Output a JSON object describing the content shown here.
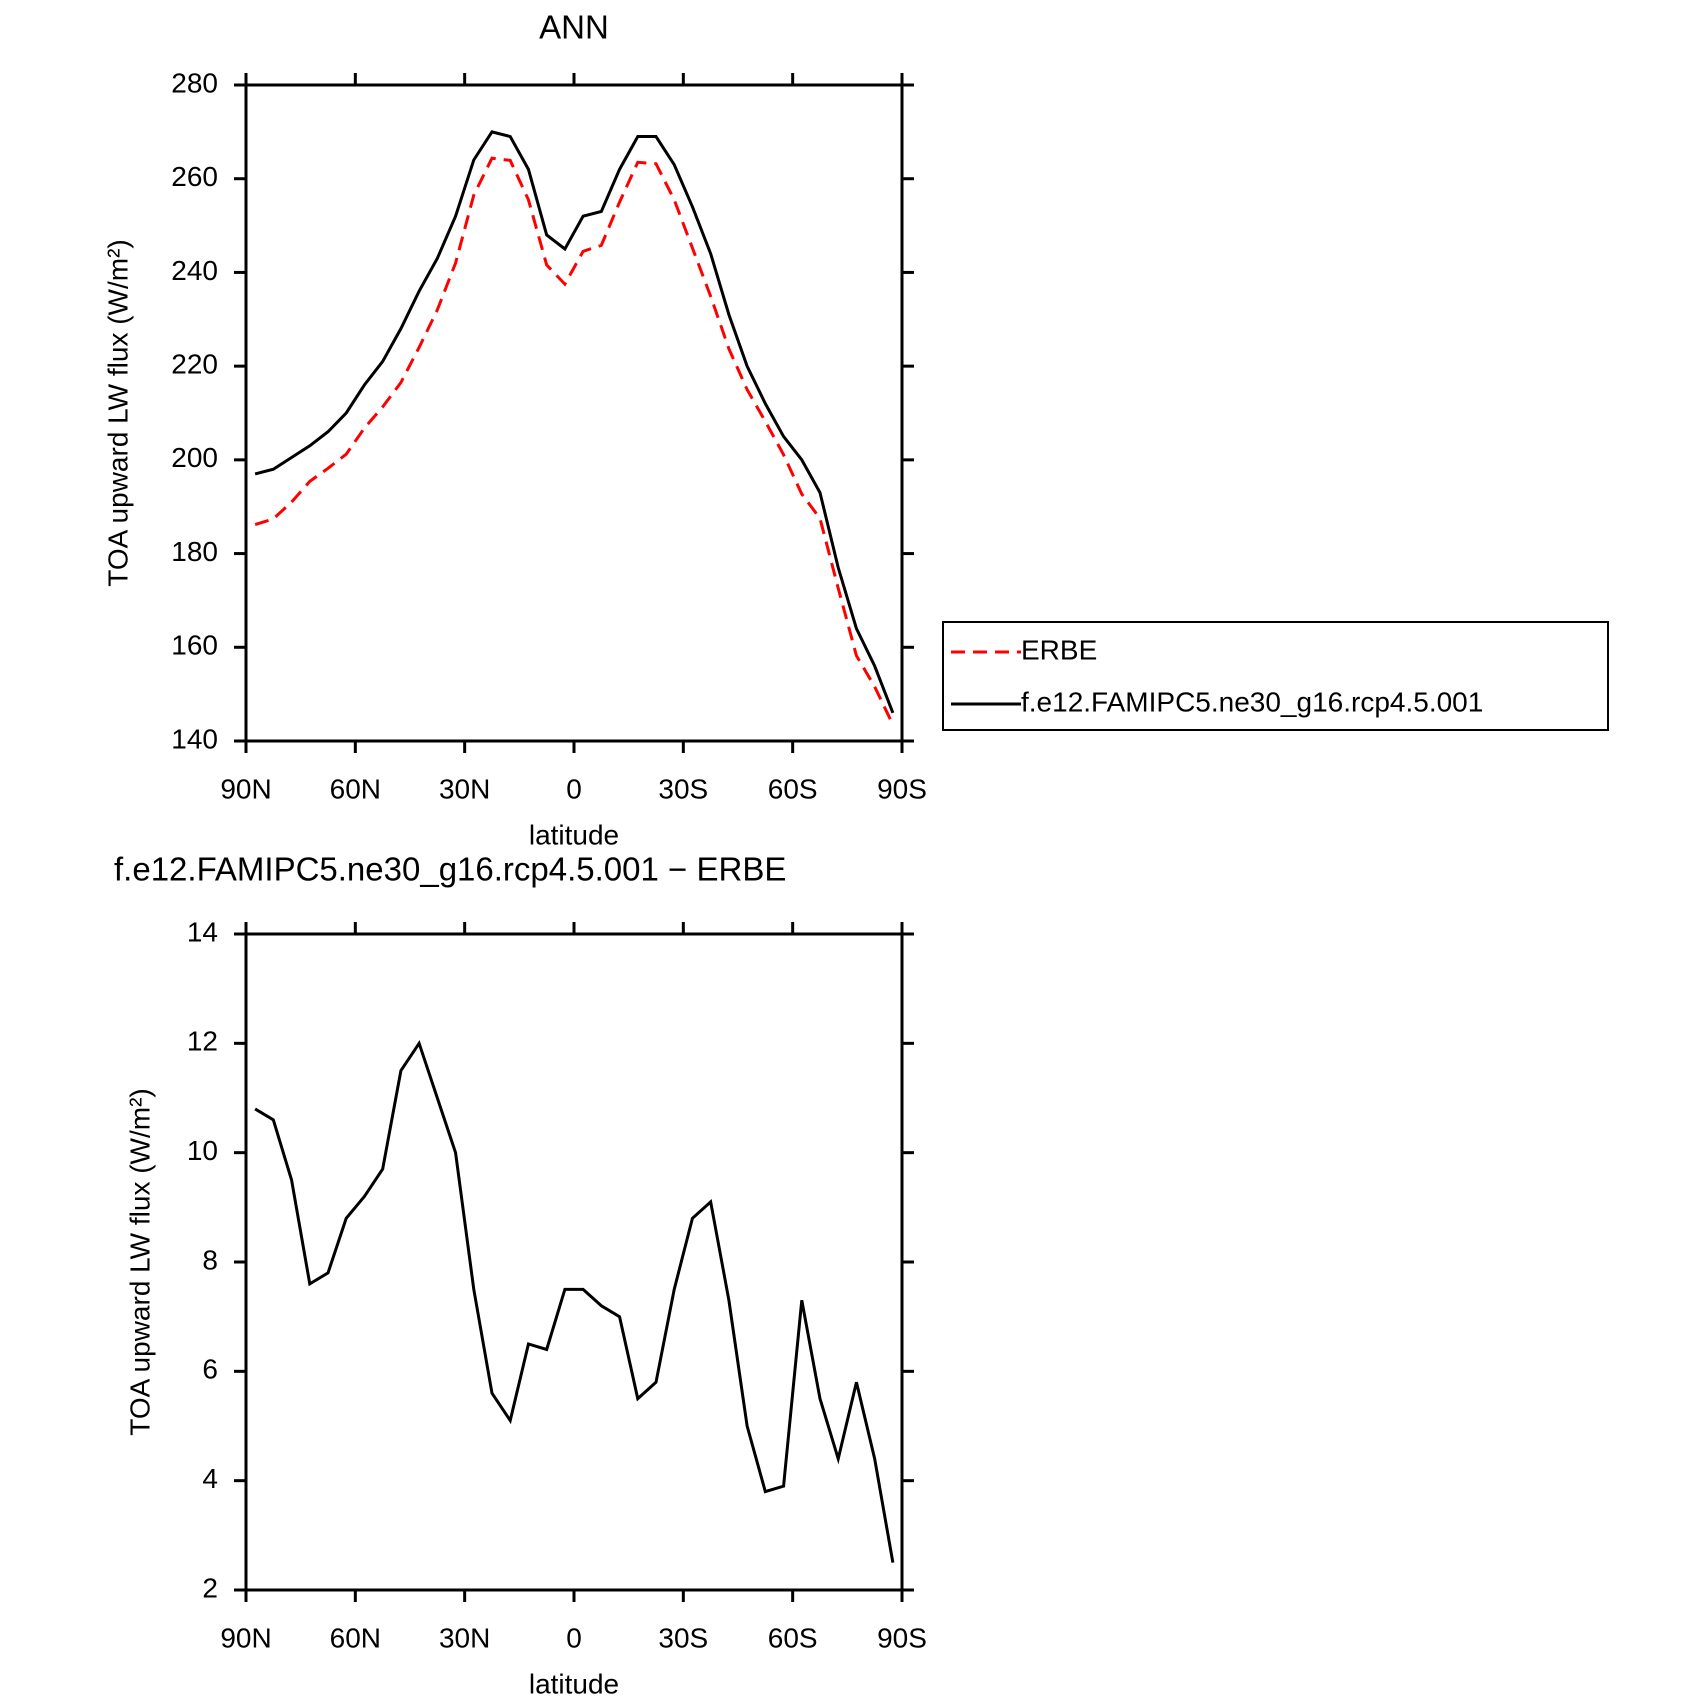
{
  "chart_data": [
    {
      "type": "line",
      "title": "ANN",
      "x_label": "latitude",
      "y_label": "TOA upward LW flux (W/m²)",
      "x": [
        87.5,
        82.5,
        77.5,
        72.5,
        67.5,
        62.5,
        57.5,
        52.5,
        47.5,
        42.5,
        37.5,
        32.5,
        27.5,
        22.5,
        17.5,
        12.5,
        7.5,
        2.5,
        -2.5,
        -7.5,
        -12.5,
        -17.5,
        -22.5,
        -27.5,
        -32.5,
        -37.5,
        -42.5,
        -47.5,
        -52.5,
        -57.5,
        -62.5,
        -67.5,
        -72.5,
        -77.5,
        -82.5,
        -87.5
      ],
      "series": [
        {
          "name": "ERBE",
          "color": "#ff0000",
          "style": "dashed",
          "values": [
            186.2,
            187.4,
            191,
            195.4,
            198.2,
            201.2,
            206.8,
            211.3,
            216.5,
            224,
            232,
            242,
            256.5,
            264.4,
            263.9,
            255.5,
            241.6,
            237.5,
            244.5,
            245.8,
            255,
            263.5,
            263.2,
            255.5,
            245.2,
            234.9,
            223.7,
            215,
            208.2,
            201.1,
            192.7,
            187.5,
            172.6,
            158.2,
            151.6,
            143.5
          ]
        },
        {
          "name": "f.e12.FAMIPC5.ne30_g16.rcp4.5.001",
          "color": "#000000",
          "style": "solid",
          "values": [
            197,
            198,
            200.5,
            203,
            206,
            210,
            216,
            221,
            228,
            236,
            243,
            252,
            264,
            270,
            269,
            262,
            248,
            245,
            252,
            253,
            262,
            269,
            269,
            263,
            254,
            244,
            231,
            220,
            212,
            205,
            200,
            193,
            177,
            164,
            156,
            146
          ]
        }
      ],
      "xlim": [
        90,
        -90
      ],
      "xticks": [
        {
          "value": 90,
          "label": "90N"
        },
        {
          "value": 60,
          "label": "60N"
        },
        {
          "value": 30,
          "label": "30N"
        },
        0,
        {
          "value": -30,
          "label": "30S"
        },
        {
          "value": -60,
          "label": "60S"
        },
        {
          "value": -90,
          "label": "90S"
        }
      ],
      "ylim": [
        140,
        280
      ],
      "yticks": [
        140,
        160,
        180,
        200,
        220,
        240,
        260,
        280
      ],
      "grid": false,
      "legend": "outside-right"
    },
    {
      "type": "line",
      "title": "f.e12.FAMIPC5.ne30_g16.rcp4.5.001 − ERBE",
      "x_label": "latitude",
      "y_label": "TOA upward LW flux (W/m²)",
      "x": [
        87.5,
        82.5,
        77.5,
        72.5,
        67.5,
        62.5,
        57.5,
        52.5,
        47.5,
        42.5,
        37.5,
        32.5,
        27.5,
        22.5,
        17.5,
        12.5,
        7.5,
        2.5,
        -2.5,
        -7.5,
        -12.5,
        -17.5,
        -22.5,
        -27.5,
        -32.5,
        -37.5,
        -42.5,
        -47.5,
        -52.5,
        -57.5,
        -62.5,
        -67.5,
        -72.5,
        -77.5,
        -82.5,
        -87.5
      ],
      "series": [
        {
          "color": "#000000",
          "style": "solid",
          "values": [
            10.8,
            10.6,
            9.5,
            7.6,
            7.8,
            8.8,
            9.2,
            9.7,
            11.5,
            12,
            11,
            10,
            7.5,
            5.6,
            5.1,
            6.5,
            6.4,
            7.5,
            7.5,
            7.2,
            7,
            5.5,
            5.8,
            7.5,
            8.8,
            9.1,
            7.3,
            5,
            3.8,
            3.9,
            7.3,
            5.5,
            4.4,
            5.8,
            4.4,
            2.5
          ]
        }
      ],
      "xlim": [
        90,
        -90
      ],
      "xticks": [
        {
          "value": 90,
          "label": "90N"
        },
        {
          "value": 60,
          "label": "60N"
        },
        {
          "value": 30,
          "label": "30N"
        },
        0,
        {
          "value": -30,
          "label": "30S"
        },
        {
          "value": -60,
          "label": "60S"
        },
        {
          "value": -90,
          "label": "90S"
        }
      ],
      "ylim": [
        2,
        14
      ],
      "yticks": [
        2,
        4,
        6,
        8,
        10,
        12,
        14
      ],
      "grid": false
    }
  ]
}
